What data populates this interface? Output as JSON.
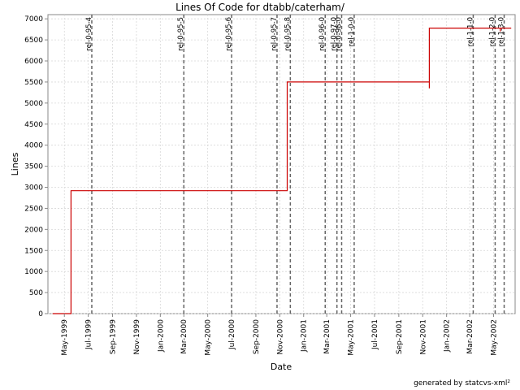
{
  "chart_data": {
    "type": "line",
    "title": "Lines Of Code for dtabb/caterham/",
    "xlabel": "Date",
    "ylabel": "Lines",
    "ylim": [
      0,
      7100
    ],
    "yticks": [
      0,
      500,
      1000,
      1500,
      2000,
      2500,
      3000,
      3500,
      4000,
      4500,
      5000,
      5500,
      6000,
      6500,
      7000
    ],
    "xlim": [
      "1999-03-20",
      "2002-06-25"
    ],
    "xticks": [
      {
        "date": "1999-05-01",
        "label": "May-1999"
      },
      {
        "date": "1999-07-01",
        "label": "Jul-1999"
      },
      {
        "date": "1999-09-01",
        "label": "Sep-1999"
      },
      {
        "date": "1999-11-01",
        "label": "Nov-1999"
      },
      {
        "date": "2000-01-01",
        "label": "Jan-2000"
      },
      {
        "date": "2000-03-01",
        "label": "Mar-2000"
      },
      {
        "date": "2000-05-01",
        "label": "May-2000"
      },
      {
        "date": "2000-07-01",
        "label": "Jul-2000"
      },
      {
        "date": "2000-09-01",
        "label": "Sep-2000"
      },
      {
        "date": "2000-11-01",
        "label": "Nov-2000"
      },
      {
        "date": "2001-01-01",
        "label": "Jan-2001"
      },
      {
        "date": "2001-03-01",
        "label": "Mar-2001"
      },
      {
        "date": "2001-05-01",
        "label": "May-2001"
      },
      {
        "date": "2001-07-01",
        "label": "Jul-2001"
      },
      {
        "date": "2001-09-01",
        "label": "Sep-2001"
      },
      {
        "date": "2001-11-01",
        "label": "Nov-2001"
      },
      {
        "date": "2002-01-01",
        "label": "Jan-2002"
      },
      {
        "date": "2002-03-01",
        "label": "Mar-2002"
      },
      {
        "date": "2002-05-01",
        "label": "May-2002"
      }
    ],
    "grid": true,
    "series": [
      {
        "color": "#cc0000",
        "step": true,
        "points": [
          {
            "x": "1999-04-01",
            "y": 0
          },
          {
            "x": "1999-05-18",
            "y": 0
          },
          {
            "x": "1999-05-18",
            "y": 2920
          },
          {
            "x": "2000-11-20",
            "y": 2920
          },
          {
            "x": "2000-11-20",
            "y": 5500
          },
          {
            "x": "2001-11-18",
            "y": 5500
          },
          {
            "x": "2001-11-18",
            "y": 5350
          },
          {
            "x": "2001-11-18",
            "y": 6780
          },
          {
            "x": "2002-05-18",
            "y": 6780
          },
          {
            "x": "2002-05-18",
            "y": 6700
          },
          {
            "x": "2002-05-18",
            "y": 6780
          },
          {
            "x": "2002-06-15",
            "y": 6780
          }
        ]
      }
    ],
    "markers": [
      {
        "date": "1999-07-10",
        "label": "rel-0-95-4"
      },
      {
        "date": "2000-03-01",
        "label": "rel-0-95-5"
      },
      {
        "date": "2000-07-01",
        "label": "rel-0-95-6"
      },
      {
        "date": "2000-10-25",
        "label": "rel-0-95-7"
      },
      {
        "date": "2000-11-28",
        "label": "rel-0-95-8"
      },
      {
        "date": "2001-02-25",
        "label": "rel-0-96-0"
      },
      {
        "date": "2001-03-27",
        "label": "rel-0-97-0"
      },
      {
        "date": "2001-04-08",
        "label": "rel-0-98-0"
      },
      {
        "date": "2001-05-10",
        "label": "rel-1-0-0"
      },
      {
        "date": "2002-03-10",
        "label": "rel-1-1-0"
      },
      {
        "date": "2002-05-05",
        "label": "rel-1-2-0"
      },
      {
        "date": "2002-05-28",
        "label": "rel-1-3-0"
      }
    ],
    "colors": {
      "line": "#cc0000",
      "marker": "#666666",
      "grid": "#d8d8d8"
    }
  },
  "footer": "generated by statcvs-xml²"
}
